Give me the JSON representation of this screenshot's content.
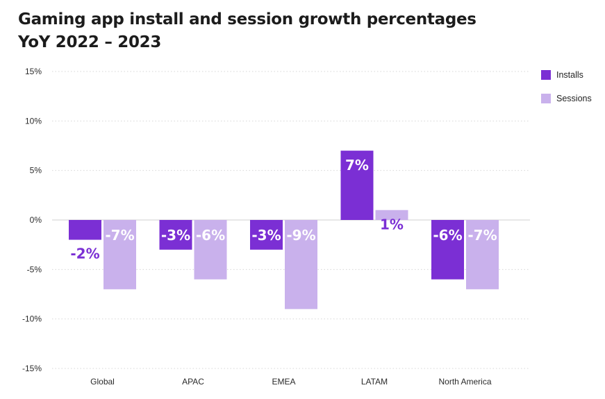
{
  "title_line1": "Gaming app install and session growth percentages",
  "title_line2": "YoY 2022 – 2023",
  "chart_data": {
    "type": "bar",
    "title": "Gaming app install and session growth percentages YoY 2022 – 2023",
    "categories": [
      "Global",
      "APAC",
      "EMEA",
      "LATAM",
      "North America"
    ],
    "series": [
      {
        "name": "Installs",
        "values": [
          -2,
          -3,
          -3,
          7,
          -6
        ],
        "color": "#7b2fd4"
      },
      {
        "name": "Sessions",
        "values": [
          -7,
          -6,
          -9,
          1,
          -7
        ],
        "color": "#c9b1ec"
      }
    ],
    "data_labels": {
      "Installs": [
        "-2%",
        "-3%",
        "-3%",
        "7%",
        "-6%"
      ],
      "Sessions": [
        "-7%",
        "-6%",
        "-9%",
        "1%",
        "-7%"
      ]
    },
    "xlabel": "",
    "ylabel": "",
    "ylim": [
      -15,
      15
    ],
    "yticks": [
      15,
      10,
      5,
      0,
      -5,
      -10,
      -15
    ],
    "ytick_labels": [
      "15%",
      "10%",
      "5%",
      "0%",
      "-5%",
      "-10%",
      "-15%"
    ],
    "grid": true,
    "legend_position": "top-right"
  }
}
